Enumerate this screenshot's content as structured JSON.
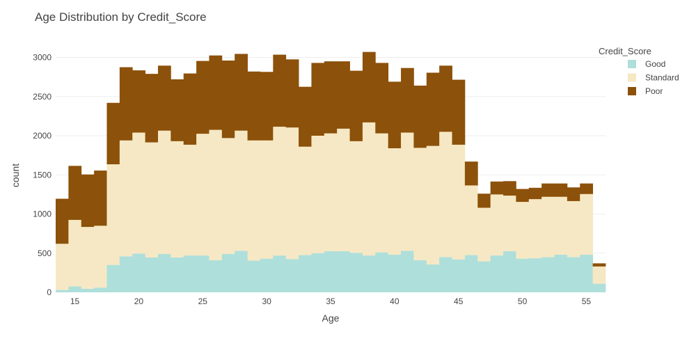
{
  "chart_data": {
    "type": "bar",
    "stacked": true,
    "histogram": true,
    "title": "Age Distribution by Credit_Score",
    "xlabel": "Age",
    "ylabel": "count",
    "xlim": [
      13.5,
      56.5
    ],
    "ylim": [
      0,
      3200
    ],
    "x_ticks": [
      15,
      20,
      25,
      30,
      35,
      40,
      45,
      50,
      55
    ],
    "y_ticks": [
      0,
      500,
      1000,
      1500,
      2000,
      2500,
      3000
    ],
    "grid": true,
    "legend": {
      "title": "Credit_Score",
      "placement": "right"
    },
    "x": [
      14,
      15,
      16,
      17,
      18,
      19,
      20,
      21,
      22,
      23,
      24,
      25,
      26,
      27,
      28,
      29,
      30,
      31,
      32,
      33,
      34,
      35,
      36,
      37,
      38,
      39,
      40,
      41,
      42,
      43,
      44,
      45,
      46,
      47,
      48,
      49,
      50,
      51,
      52,
      53,
      54,
      55,
      56
    ],
    "series": [
      {
        "name": "Good",
        "color": "#aedfdb",
        "values": [
          30,
          75,
          45,
          60,
          350,
          460,
          495,
          445,
          490,
          445,
          470,
          470,
          410,
          490,
          530,
          405,
          430,
          470,
          425,
          475,
          500,
          525,
          525,
          505,
          470,
          510,
          480,
          530,
          410,
          355,
          450,
          420,
          475,
          395,
          470,
          525,
          430,
          435,
          450,
          480,
          450,
          480,
          110
        ]
      },
      {
        "name": "Standard",
        "color": "#f6e8c4",
        "values": [
          590,
          850,
          790,
          790,
          1285,
          1480,
          1545,
          1470,
          1575,
          1485,
          1415,
          1555,
          1665,
          1480,
          1535,
          1535,
          1510,
          1645,
          1680,
          1385,
          1500,
          1505,
          1565,
          1425,
          1700,
          1520,
          1360,
          1510,
          1435,
          1515,
          1600,
          1465,
          890,
          685,
          780,
          710,
          725,
          755,
          770,
          740,
          715,
          775,
          220
        ]
      },
      {
        "name": "Poor",
        "color": "#8c510a",
        "values": [
          575,
          690,
          670,
          705,
          785,
          935,
          795,
          875,
          830,
          790,
          910,
          930,
          950,
          990,
          980,
          880,
          875,
          920,
          870,
          765,
          930,
          920,
          860,
          900,
          900,
          900,
          850,
          825,
          795,
          935,
          845,
          830,
          305,
          180,
          165,
          185,
          165,
          145,
          170,
          170,
          175,
          135,
          40
        ]
      }
    ]
  }
}
